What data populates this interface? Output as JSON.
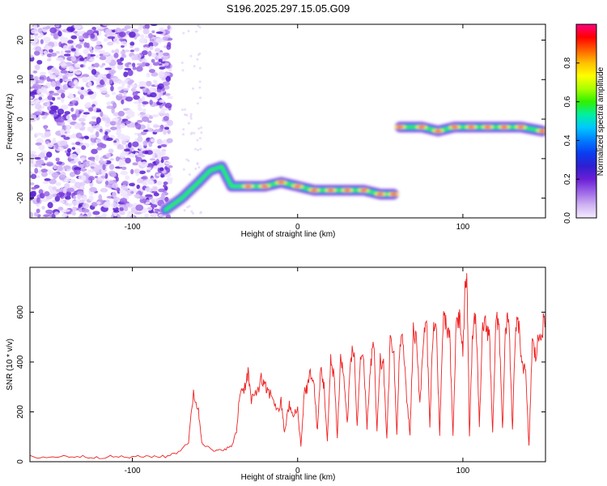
{
  "title": "S196.2025.297.15.05.G09",
  "chart_data": [
    {
      "type": "heatmap",
      "xlabel": "Height of straight line (km)",
      "ylabel": "Frequency (Hz)",
      "xlim": [
        -162,
        150
      ],
      "ylim": [
        -25,
        24
      ],
      "x_ticks": [
        -100,
        0,
        100
      ],
      "y_ticks": [
        -20,
        -10,
        0,
        10,
        20
      ],
      "colorbar": {
        "label": "Normalized spectral amplitude",
        "range": [
          0,
          1
        ],
        "ticks": [
          "0.0",
          "0.2",
          "0.4",
          "0.6",
          "0.8"
        ],
        "tick_values": [
          0.0,
          0.2,
          0.4,
          0.6,
          0.8
        ],
        "colors": [
          "#f4ecff",
          "#cfb2f2",
          "#9d66e8",
          "#6a1fd6",
          "#2f1fd0",
          "#0a3cf0",
          "#007cff",
          "#00c8ff",
          "#00f0a0",
          "#30f000",
          "#a8ff00",
          "#ffff00",
          "#ffc000",
          "#ff6000",
          "#ff0000",
          "#ff0080"
        ]
      },
      "ridge": [
        {
          "x": -80,
          "y": -23
        },
        {
          "x": -70,
          "y": -20
        },
        {
          "x": -60,
          "y": -16
        },
        {
          "x": -53,
          "y": -13
        },
        {
          "x": -46,
          "y": -12
        },
        {
          "x": -40,
          "y": -17
        },
        {
          "x": -30,
          "y": -17
        },
        {
          "x": -20,
          "y": -17
        },
        {
          "x": -10,
          "y": -16
        },
        {
          "x": 0,
          "y": -17
        },
        {
          "x": 10,
          "y": -18
        },
        {
          "x": 20,
          "y": -18
        },
        {
          "x": 30,
          "y": -18
        },
        {
          "x": 40,
          "y": -18
        },
        {
          "x": 50,
          "y": -19
        },
        {
          "x": 58,
          "y": -19
        },
        {
          "x": 62,
          "y": -2
        },
        {
          "x": 75,
          "y": -2
        },
        {
          "x": 85,
          "y": -3
        },
        {
          "x": 95,
          "y": -2
        },
        {
          "x": 105,
          "y": -2
        },
        {
          "x": 115,
          "y": -2
        },
        {
          "x": 125,
          "y": -2
        },
        {
          "x": 135,
          "y": -2
        },
        {
          "x": 148,
          "y": -3
        }
      ]
    },
    {
      "type": "line",
      "xlabel": "Height of straight line (km)",
      "ylabel": "SNR (10 * v/v)",
      "xlim": [
        -162,
        150
      ],
      "ylim": [
        0,
        780
      ],
      "x_ticks": [
        -100,
        0,
        100
      ],
      "y_ticks": [
        0,
        200,
        400,
        600
      ],
      "line_color": "#ee2222",
      "x": [
        -162,
        -150,
        -140,
        -130,
        -120,
        -110,
        -100,
        -90,
        -80,
        -72,
        -66,
        -63,
        -60,
        -58,
        -55,
        -50,
        -45,
        -40,
        -37,
        -35,
        -32,
        -30,
        -28,
        -25,
        -22,
        -20,
        -18,
        -15,
        -12,
        -10,
        -8,
        -5,
        -3,
        0,
        2,
        4,
        6,
        8,
        10,
        12,
        14,
        16,
        18,
        20,
        22,
        24,
        26,
        28,
        30,
        32,
        34,
        36,
        38,
        40,
        42,
        44,
        46,
        48,
        50,
        52,
        54,
        56,
        58,
        60,
        62,
        64,
        66,
        68,
        70,
        72,
        74,
        76,
        78,
        80,
        82,
        84,
        86,
        88,
        90,
        92,
        94,
        96,
        98,
        100,
        102,
        103,
        104,
        106,
        108,
        110,
        112,
        114,
        116,
        118,
        120,
        122,
        124,
        126,
        128,
        130,
        132,
        134,
        136,
        138,
        140,
        142,
        144,
        146,
        148,
        150
      ],
      "values": [
        20,
        18,
        22,
        20,
        18,
        20,
        18,
        22,
        20,
        40,
        80,
        280,
        200,
        80,
        60,
        40,
        50,
        60,
        120,
        280,
        300,
        360,
        240,
        280,
        330,
        300,
        280,
        260,
        200,
        240,
        120,
        230,
        180,
        210,
        60,
        280,
        300,
        360,
        300,
        120,
        380,
        300,
        80,
        400,
        360,
        100,
        420,
        340,
        150,
        400,
        460,
        140,
        420,
        380,
        140,
        380,
        480,
        120,
        400,
        380,
        90,
        470,
        480,
        100,
        500,
        460,
        260,
        110,
        520,
        500,
        220,
        480,
        560,
        150,
        540,
        520,
        110,
        560,
        540,
        500,
        100,
        560,
        580,
        440,
        780,
        560,
        100,
        540,
        560,
        130,
        560,
        540,
        520,
        120,
        560,
        540,
        130,
        560,
        540,
        120,
        560,
        520,
        400,
        350,
        60,
        480,
        420,
        500,
        540,
        560
      ]
    }
  ]
}
